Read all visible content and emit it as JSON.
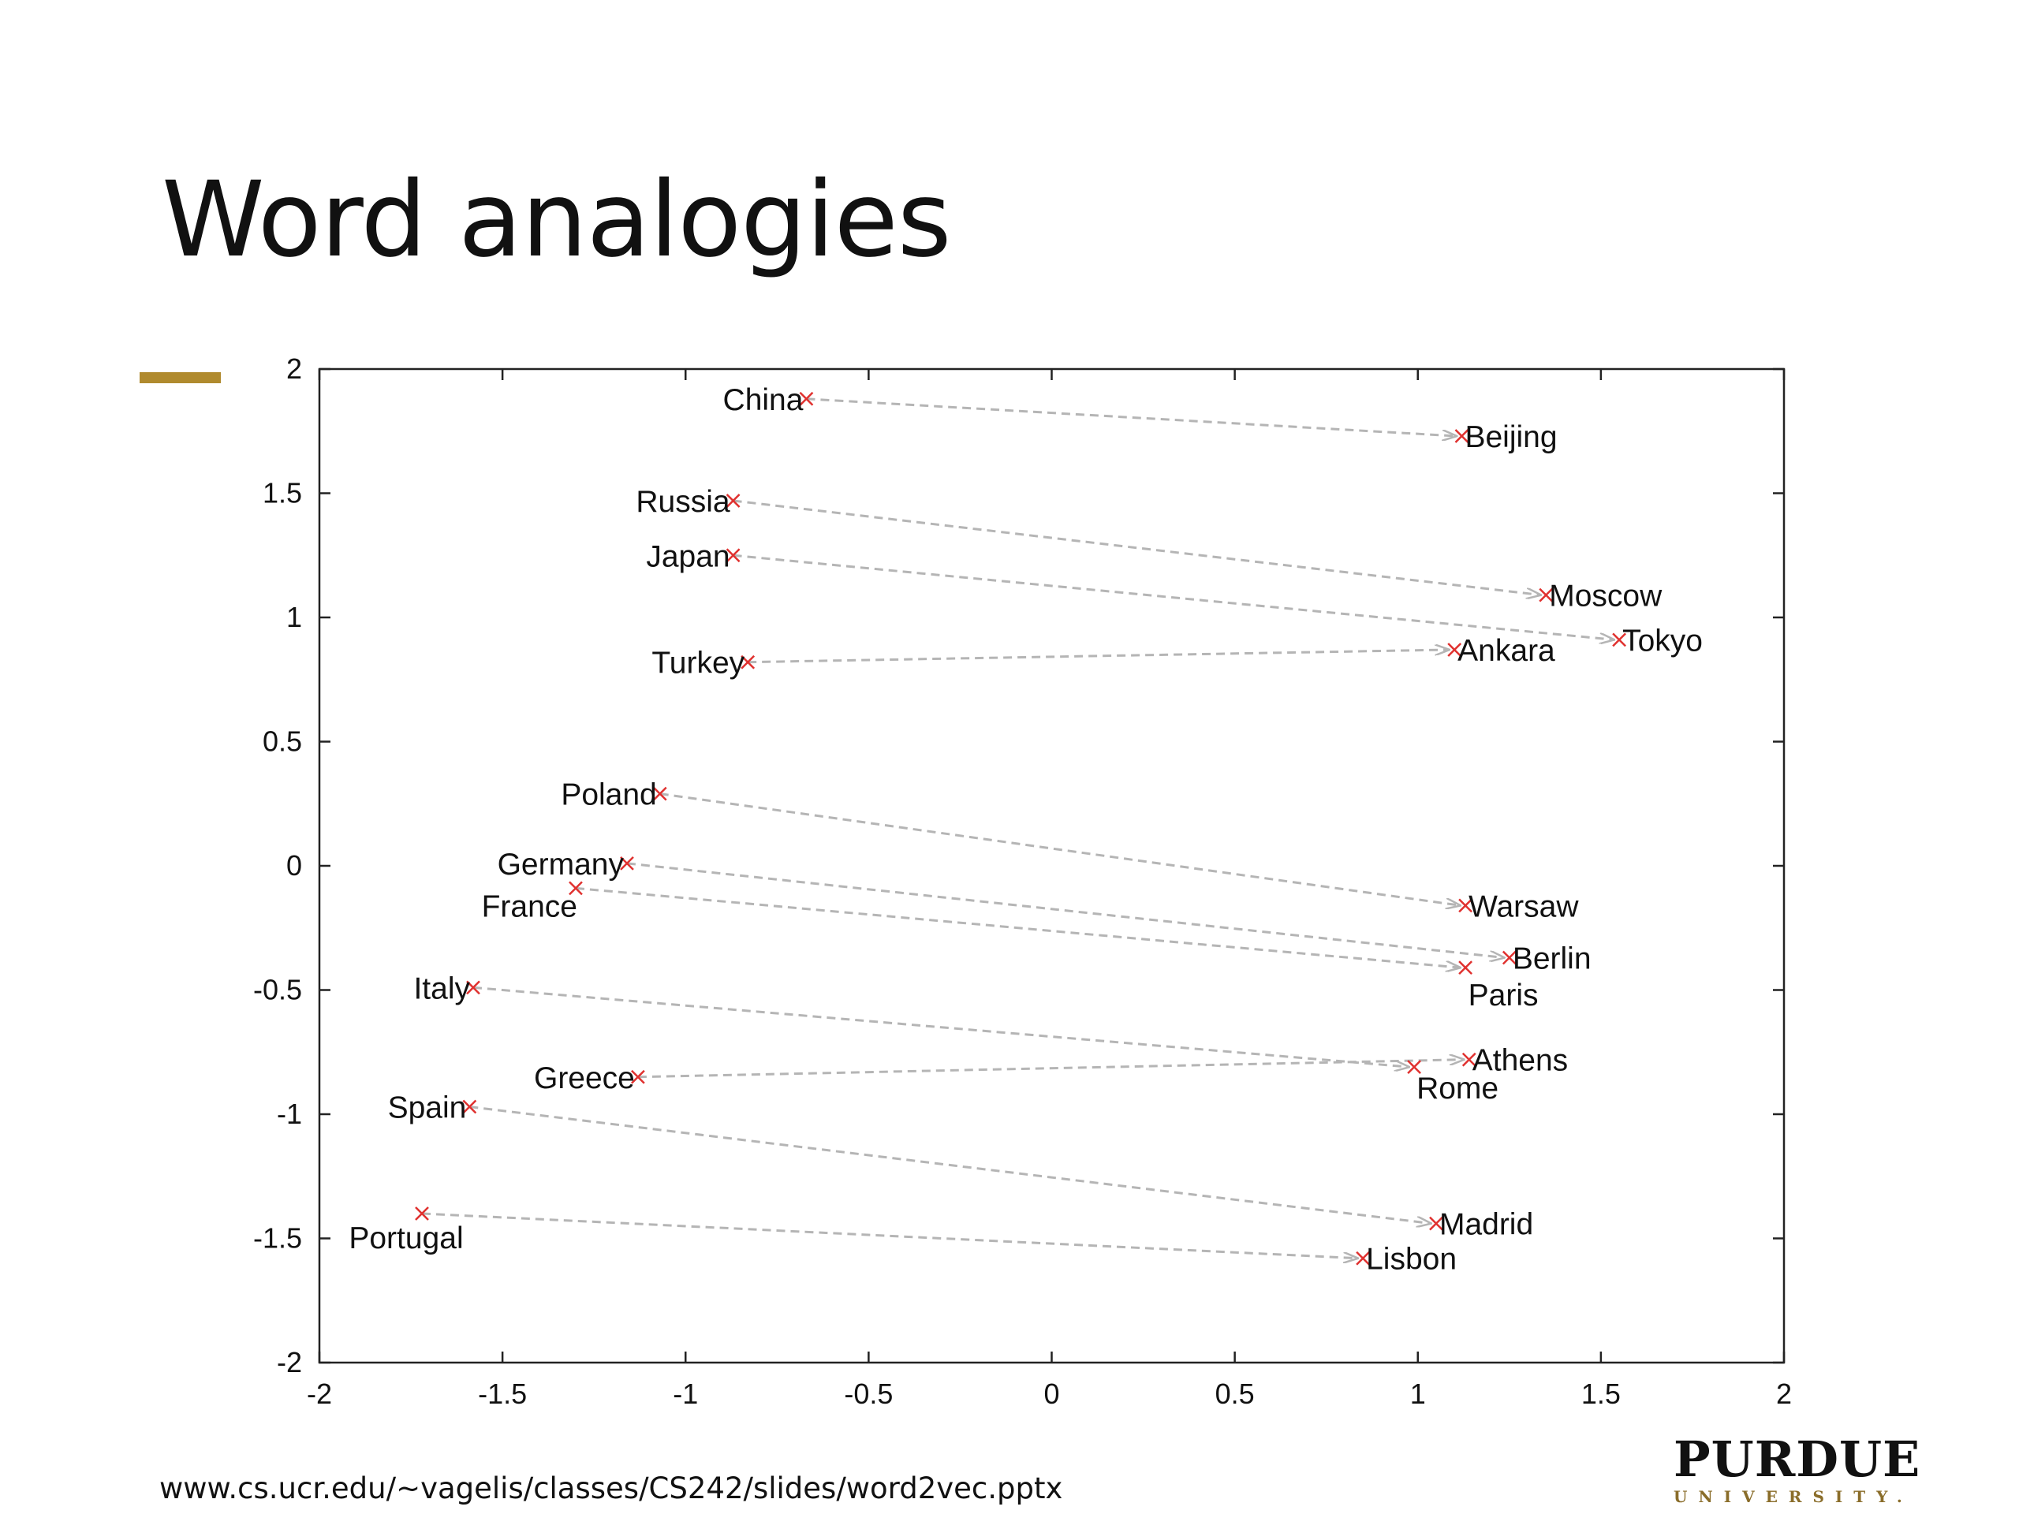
{
  "slide": {
    "title": "Word analogies",
    "source": "www.cs.ucr.edu/~vagelis/classes/CS242/slides/word2vec.pptx",
    "logo": {
      "name": "PURDUE",
      "sub": "UNIVERSITY."
    },
    "accent_color": "#b08a2e"
  },
  "chart_data": {
    "type": "scatter",
    "title": "",
    "xlabel": "",
    "ylabel": "",
    "xlim": [
      -2,
      2
    ],
    "ylim": [
      -2,
      2
    ],
    "xticks": [
      -2,
      -1.5,
      -1,
      -0.5,
      0,
      0.5,
      1,
      1.5,
      2
    ],
    "yticks": [
      -2,
      -1.5,
      -1,
      -0.5,
      0,
      0.5,
      1,
      1.5,
      2
    ],
    "grid": false,
    "marker_color": "#e0312f",
    "arrow_color": "#b5b5b5",
    "points": [
      {
        "label": "China",
        "x": -0.67,
        "y": 1.88
      },
      {
        "label": "Beijing",
        "x": 1.12,
        "y": 1.73
      },
      {
        "label": "Russia",
        "x": -0.87,
        "y": 1.47
      },
      {
        "label": "Moscow",
        "x": 1.35,
        "y": 1.09
      },
      {
        "label": "Japan",
        "x": -0.87,
        "y": 1.25
      },
      {
        "label": "Tokyo",
        "x": 1.55,
        "y": 0.91
      },
      {
        "label": "Turkey",
        "x": -0.83,
        "y": 0.82
      },
      {
        "label": "Ankara",
        "x": 1.1,
        "y": 0.87
      },
      {
        "label": "Poland",
        "x": -1.07,
        "y": 0.29
      },
      {
        "label": "Warsaw",
        "x": 1.13,
        "y": -0.16
      },
      {
        "label": "Germany",
        "x": -1.16,
        "y": 0.01
      },
      {
        "label": "Berlin",
        "x": 1.25,
        "y": -0.37
      },
      {
        "label": "France",
        "x": -1.3,
        "y": -0.09
      },
      {
        "label": "Paris",
        "x": 1.13,
        "y": -0.41
      },
      {
        "label": "Italy",
        "x": -1.58,
        "y": -0.49
      },
      {
        "label": "Rome",
        "x": 0.99,
        "y": -0.81
      },
      {
        "label": "Greece",
        "x": -1.13,
        "y": -0.85
      },
      {
        "label": "Athens",
        "x": 1.14,
        "y": -0.78
      },
      {
        "label": "Spain",
        "x": -1.59,
        "y": -0.97
      },
      {
        "label": "Madrid",
        "x": 1.05,
        "y": -1.44
      },
      {
        "label": "Portugal",
        "x": -1.72,
        "y": -1.4
      },
      {
        "label": "Lisbon",
        "x": 0.85,
        "y": -1.58
      }
    ],
    "pairs": [
      [
        "China",
        "Beijing"
      ],
      [
        "Russia",
        "Moscow"
      ],
      [
        "Japan",
        "Tokyo"
      ],
      [
        "Turkey",
        "Ankara"
      ],
      [
        "Poland",
        "Warsaw"
      ],
      [
        "Germany",
        "Berlin"
      ],
      [
        "France",
        "Paris"
      ],
      [
        "Italy",
        "Rome"
      ],
      [
        "Greece",
        "Athens"
      ],
      [
        "Spain",
        "Madrid"
      ],
      [
        "Portugal",
        "Lisbon"
      ]
    ]
  }
}
